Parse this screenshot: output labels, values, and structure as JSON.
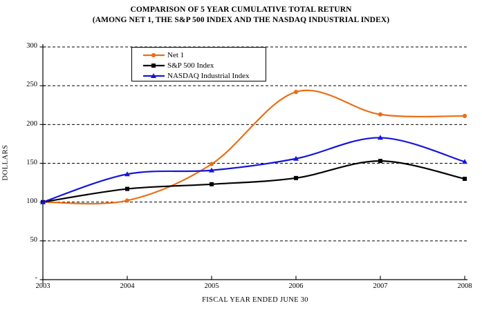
{
  "title": {
    "line1": "COMPARISON OF 5 YEAR CUMULATIVE TOTAL RETURN",
    "line2": "(AMONG NET 1, THE S&P 500 INDEX AND THE NASDAQ INDUSTRIAL INDEX)"
  },
  "chart_data": {
    "type": "line",
    "title": "COMPARISON OF 5 YEAR CUMULATIVE TOTAL RETURN (AMONG NET 1, THE S&P 500 INDEX AND THE NASDAQ INDUSTRIAL INDEX)",
    "categories": [
      "2003",
      "2004",
      "2005",
      "2006",
      "2007",
      "2008"
    ],
    "series": [
      {
        "name": "Net 1",
        "marker": "circle",
        "color": "#EB6E14",
        "values": [
          100,
          102,
          149,
          242,
          213,
          211
        ]
      },
      {
        "name": "S&P 500 Index",
        "marker": "square",
        "color": "#000000",
        "values": [
          100,
          117,
          123,
          131,
          153,
          130
        ]
      },
      {
        "name": "NASDAQ Industrial Index",
        "marker": "triangle",
        "color": "#1414DC",
        "values": [
          100,
          136,
          141,
          156,
          183,
          152
        ]
      }
    ],
    "xlabel": "FISCAL YEAR ENDED JUNE 30",
    "ylabel": "DOLLARS",
    "ylim": [
      0,
      300
    ],
    "y_ticks": [
      0,
      50,
      100,
      150,
      200,
      250,
      300
    ],
    "y_tick_labels": [
      "-",
      "50",
      "100",
      "150",
      "200",
      "250",
      "300"
    ],
    "grid": "horizontal-dashed",
    "legend_position": "inside-top-left",
    "line_style": "smooth",
    "background": "#ffffff"
  }
}
